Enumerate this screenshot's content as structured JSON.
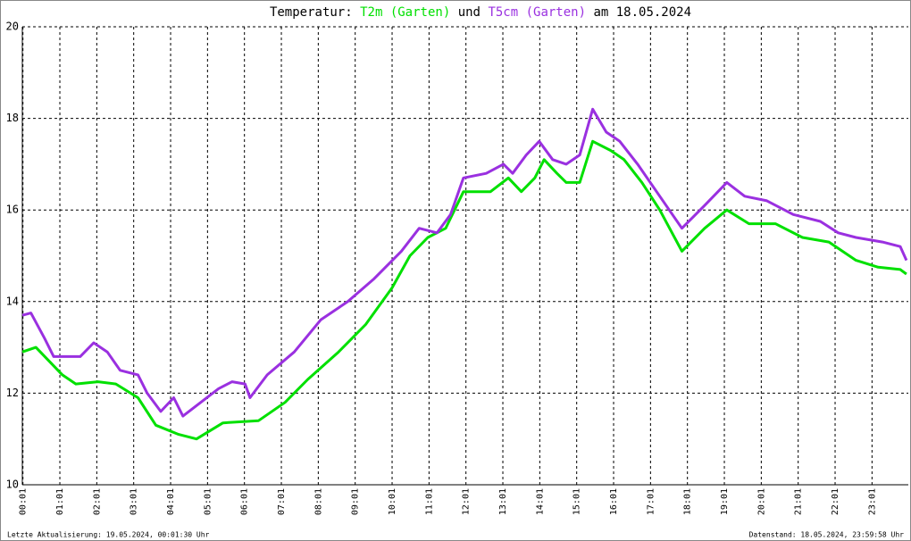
{
  "chart_data": {
    "type": "line",
    "title_parts": [
      "Temperatur:",
      "T2m (Garten)",
      "und",
      "T5cm (Garten)",
      "am 18.05.2024"
    ],
    "footer_left": "Letzte Aktualisierung: 19.05.2024, 00:01:30 Uhr",
    "footer_right": "Datenstand: 18.05.2024, 23:59:58 Uhr",
    "xlim": [
      0,
      1440
    ],
    "ylim": [
      10,
      20
    ],
    "yticks": [
      10,
      12,
      14,
      16,
      18,
      20
    ],
    "grid": true,
    "xticks": [
      {
        "value": 1,
        "label": "00:01"
      },
      {
        "value": 61,
        "label": "01:01"
      },
      {
        "value": 121,
        "label": "02:01"
      },
      {
        "value": 181,
        "label": "03:01"
      },
      {
        "value": 241,
        "label": "04:01"
      },
      {
        "value": 301,
        "label": "05:01"
      },
      {
        "value": 361,
        "label": "06:01"
      },
      {
        "value": 421,
        "label": "07:01"
      },
      {
        "value": 481,
        "label": "08:01"
      },
      {
        "value": 541,
        "label": "09:01"
      },
      {
        "value": 601,
        "label": "10:01"
      },
      {
        "value": 661,
        "label": "11:01"
      },
      {
        "value": 721,
        "label": "12:01"
      },
      {
        "value": 781,
        "label": "13:01"
      },
      {
        "value": 841,
        "label": "14:01"
      },
      {
        "value": 901,
        "label": "15:01"
      },
      {
        "value": 961,
        "label": "16:01"
      },
      {
        "value": 1021,
        "label": "17:01"
      },
      {
        "value": 1081,
        "label": "18:01"
      },
      {
        "value": 1141,
        "label": "19:01"
      },
      {
        "value": 1201,
        "label": "20:01"
      },
      {
        "value": 1261,
        "label": "21:01"
      },
      {
        "value": 1321,
        "label": "22:01"
      },
      {
        "value": 1381,
        "label": "23:01"
      }
    ],
    "series": [
      {
        "name": "T2m (Garten)",
        "color": "#00e000",
        "x": [
          0,
          22,
          65,
          87,
          123,
          152,
          188,
          217,
          254,
          283,
          326,
          384,
          427,
          464,
          514,
          558,
          601,
          630,
          659,
          688,
          717,
          761,
          790,
          811,
          833,
          848,
          869,
          884,
          906,
          927,
          956,
          978,
          1007,
          1036,
          1072,
          1109,
          1145,
          1181,
          1224,
          1268,
          1311,
          1355,
          1391,
          1427,
          1437
        ],
        "values": [
          12.9,
          13.0,
          12.4,
          12.2,
          12.25,
          12.2,
          11.9,
          11.3,
          11.1,
          11.0,
          11.35,
          11.4,
          11.8,
          12.3,
          12.9,
          13.5,
          14.3,
          15.0,
          15.4,
          15.6,
          16.4,
          16.4,
          16.7,
          16.4,
          16.7,
          17.1,
          16.8,
          16.6,
          16.6,
          17.5,
          17.3,
          17.1,
          16.6,
          16.0,
          15.1,
          15.6,
          16.0,
          15.7,
          15.7,
          15.4,
          15.3,
          14.9,
          14.75,
          14.7,
          14.6
        ]
      },
      {
        "name": "T5cm (Garten)",
        "color": "#9a30e0",
        "x": [
          0,
          14,
          36,
          51,
          94,
          116,
          138,
          159,
          188,
          203,
          225,
          246,
          261,
          290,
          319,
          341,
          362,
          370,
          398,
          442,
          485,
          529,
          572,
          616,
          645,
          674,
          696,
          717,
          754,
          782,
          797,
          819,
          840,
          862,
          884,
          906,
          927,
          949,
          971,
          1000,
          1036,
          1072,
          1109,
          1145,
          1174,
          1210,
          1253,
          1297,
          1326,
          1355,
          1398,
          1427,
          1437
        ],
        "values": [
          13.7,
          13.75,
          13.2,
          12.8,
          12.8,
          13.1,
          12.9,
          12.5,
          12.4,
          12.0,
          11.6,
          11.9,
          11.5,
          11.8,
          12.1,
          12.25,
          12.2,
          11.9,
          12.4,
          12.9,
          13.6,
          14.0,
          14.5,
          15.1,
          15.6,
          15.5,
          15.9,
          16.7,
          16.8,
          17.0,
          16.8,
          17.2,
          17.5,
          17.1,
          17.0,
          17.2,
          18.2,
          17.7,
          17.5,
          17.0,
          16.3,
          15.6,
          16.1,
          16.6,
          16.3,
          16.2,
          15.9,
          15.75,
          15.5,
          15.4,
          15.3,
          15.2,
          14.9
        ]
      }
    ]
  }
}
